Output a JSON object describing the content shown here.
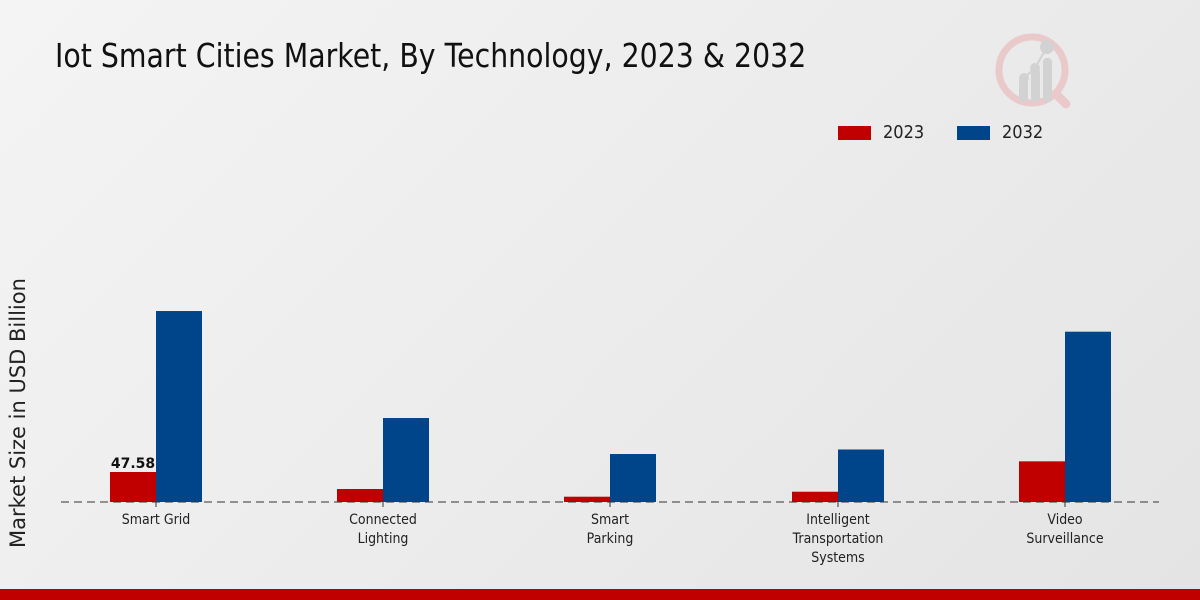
{
  "title": "Iot Smart Cities Market, By Technology, 2023 & 2032",
  "logo": {
    "icon": "market-research-logo-icon"
  },
  "colors": {
    "2023": "#c00000",
    "2032": "#004589",
    "accent_strip": "#c00000"
  },
  "chart_data": {
    "type": "bar",
    "title": "Iot Smart Cities Market, By Technology, 2023 & 2032",
    "xlabel": "",
    "ylabel": "Market Size in USD Billion",
    "categories": [
      [
        "Smart Grid"
      ],
      [
        "Connected",
        "Lighting"
      ],
      [
        "Smart",
        "Parking"
      ],
      [
        "Intelligent",
        "Transportation",
        "Systems"
      ],
      [
        "Video",
        "Surveillance"
      ]
    ],
    "category_names": [
      "Smart Grid",
      "Connected Lighting",
      "Smart Parking",
      "Intelligent Transportation Systems",
      "Video Surveillance"
    ],
    "series": [
      {
        "name": "2023",
        "color": "#c00000",
        "values": [
          47.58,
          20.6,
          8.4,
          16.3,
          64.5
        ]
      },
      {
        "name": "2032",
        "color": "#004589",
        "values": [
          302.9,
          133.2,
          76.1,
          83.3,
          270.1
        ]
      }
    ],
    "data_labels": [
      {
        "series": "2023",
        "category_index": 0,
        "text": "47.58"
      }
    ],
    "ylim": [
      0,
      380
    ],
    "grid": false,
    "baseline": "dashed",
    "legend": {
      "position": "top-right",
      "entries": [
        "2023",
        "2032"
      ]
    }
  }
}
